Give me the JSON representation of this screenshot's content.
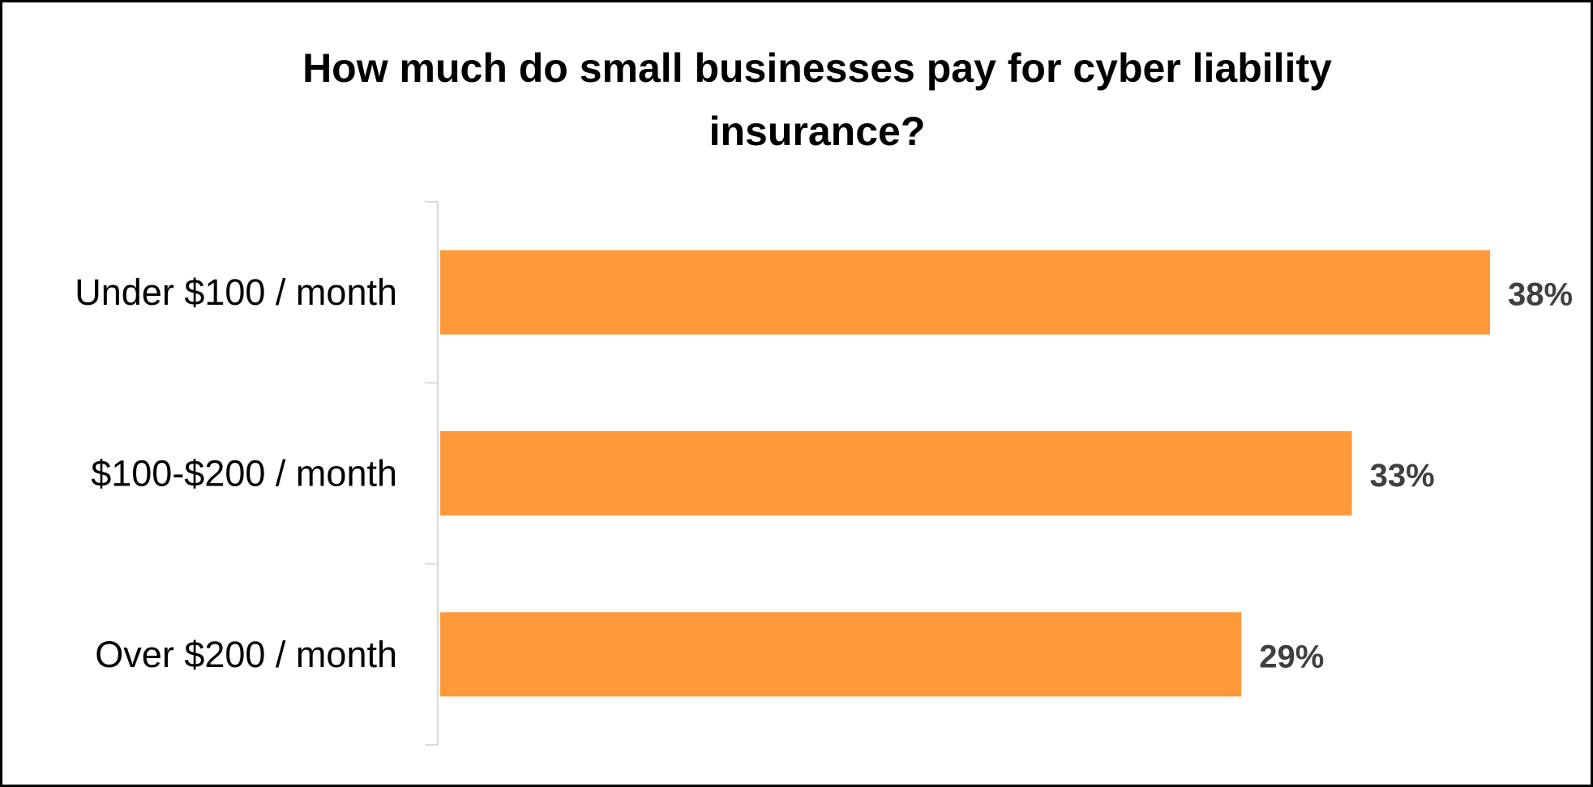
{
  "chart_data": {
    "type": "bar",
    "orientation": "horizontal",
    "title": "How much do small businesses pay for cyber liability insurance?",
    "categories": [
      "Under $100 / month",
      "$100-$200 / month",
      "Over $200 / month"
    ],
    "values": [
      38,
      33,
      29
    ],
    "value_labels": [
      "38%",
      "33%",
      "29%"
    ],
    "xlim": [
      0,
      38
    ],
    "grid": false,
    "legend": "none",
    "colors": {
      "bar": "#FF993A",
      "axis": "#D9D9D9",
      "value_label": "#404040",
      "category_label": "#000000"
    }
  }
}
